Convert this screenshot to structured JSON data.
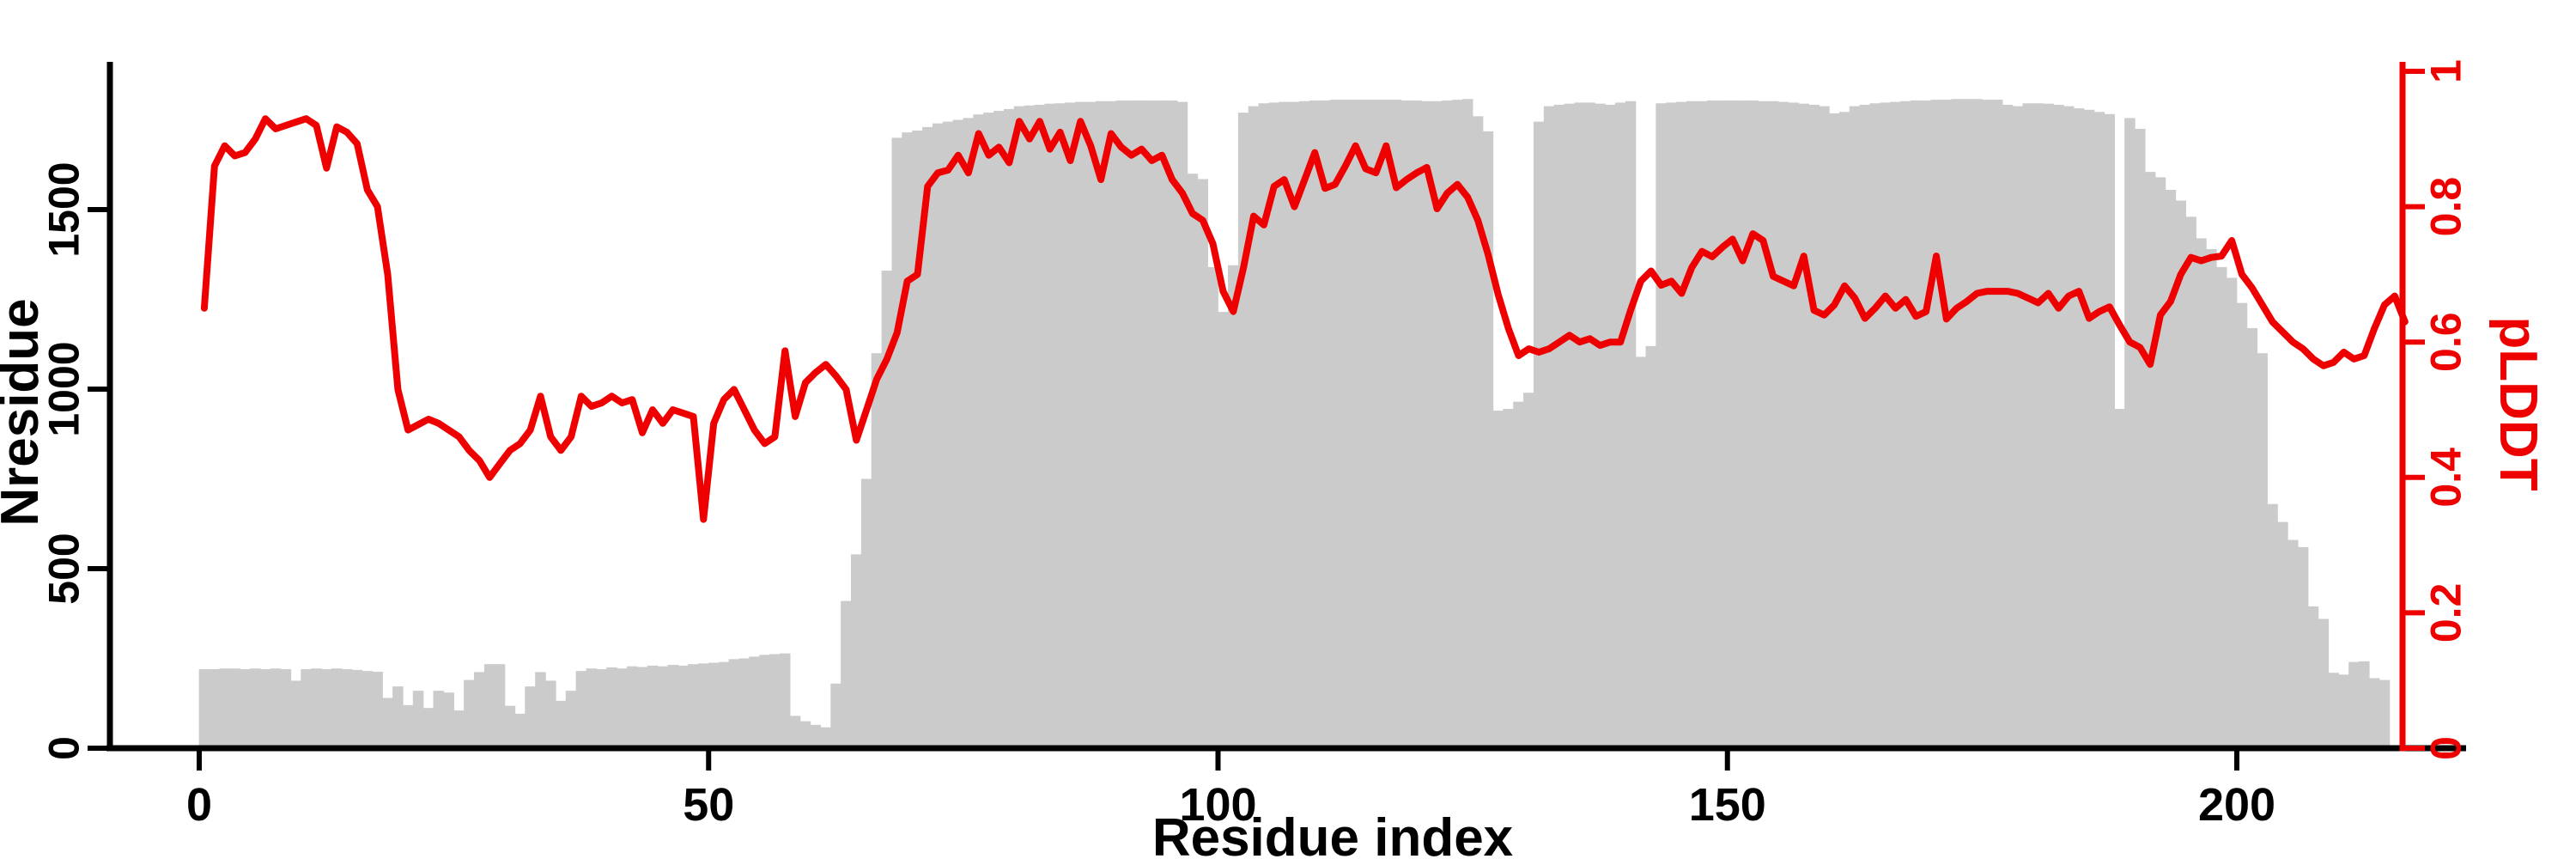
{
  "chart_data": {
    "type": "bar",
    "subtype": "dual-axis bar+line",
    "title": "",
    "xlabel": "Residue index",
    "ylabel_left": "Nresidue",
    "ylabel_right": "pLDDT",
    "x_ticks": [
      0,
      50,
      100,
      150,
      200
    ],
    "y_ticks_left": [
      0,
      500,
      1000,
      1500
    ],
    "y_ticks_right": [
      "0",
      "0.2",
      "0.4",
      "0.6",
      "0.8",
      "1"
    ],
    "y_ticks_right_values": [
      0,
      0.2,
      0.4,
      0.6,
      0.8,
      1
    ],
    "xlim": [
      0,
      217
    ],
    "ylim_left": [
      0,
      1880
    ],
    "ylim_right": [
      0,
      1
    ],
    "grid": false,
    "legend": false,
    "colors": {
      "bar": "#cbcbcb",
      "line": "#ee0000",
      "axis_left": "#000000",
      "axis_right": "#ee0000",
      "background": "#ffffff"
    },
    "x": "residue index 0..216",
    "bar_series": {
      "name": "Nresidue",
      "values": [
        220,
        220,
        222,
        222,
        220,
        222,
        220,
        222,
        220,
        188,
        220,
        222,
        220,
        222,
        220,
        218,
        215,
        213,
        140,
        172,
        120,
        160,
        112,
        160,
        155,
        105,
        190,
        212,
        234,
        234,
        118,
        96,
        172,
        212,
        188,
        132,
        160,
        215,
        222,
        220,
        225,
        222,
        228,
        226,
        230,
        228,
        232,
        230,
        234,
        236,
        238,
        240,
        248,
        250,
        255,
        260,
        262,
        264,
        90,
        75,
        65,
        58,
        180,
        410,
        540,
        750,
        1100,
        1330,
        1700,
        1715,
        1720,
        1730,
        1740,
        1745,
        1750,
        1755,
        1765,
        1770,
        1775,
        1780,
        1788,
        1790,
        1792,
        1795,
        1796,
        1798,
        1800,
        1800,
        1802,
        1802,
        1804,
        1804,
        1804,
        1804,
        1804,
        1804,
        1800,
        1600,
        1585,
        1340,
        1215,
        1345,
        1770,
        1788,
        1796,
        1798,
        1800,
        1800,
        1802,
        1804,
        1804,
        1806,
        1806,
        1806,
        1806,
        1806,
        1806,
        1806,
        1804,
        1804,
        1802,
        1802,
        1804,
        1806,
        1808,
        1760,
        1718,
        940,
        945,
        965,
        990,
        1745,
        1788,
        1792,
        1795,
        1798,
        1798,
        1795,
        1792,
        1798,
        1802,
        1090,
        1120,
        1796,
        1798,
        1800,
        1802,
        1802,
        1804,
        1804,
        1804,
        1804,
        1804,
        1802,
        1802,
        1800,
        1798,
        1795,
        1792,
        1788,
        1768,
        1772,
        1788,
        1792,
        1796,
        1798,
        1800,
        1802,
        1804,
        1804,
        1806,
        1806,
        1808,
        1808,
        1808,
        1806,
        1806,
        1792,
        1788,
        1796,
        1796,
        1795,
        1792,
        1788,
        1782,
        1778,
        1772,
        1766,
        945,
        1755,
        1725,
        1605,
        1590,
        1555,
        1525,
        1480,
        1420,
        1390,
        1340,
        1310,
        1240,
        1170,
        1100,
        680,
        630,
        580,
        560,
        395,
        360,
        210,
        205,
        240,
        242,
        195,
        190,
        0,
        0
      ]
    },
    "line_series": {
      "name": "pLDDT",
      "values": [
        0.65,
        0.86,
        0.89,
        0.875,
        0.88,
        0.9,
        0.93,
        0.915,
        0.92,
        0.925,
        0.93,
        0.92,
        0.857,
        0.918,
        0.91,
        0.893,
        0.825,
        0.8,
        0.7,
        0.53,
        0.47,
        0.478,
        0.486,
        0.48,
        0.47,
        0.46,
        0.44,
        0.425,
        0.4,
        0.42,
        0.44,
        0.45,
        0.47,
        0.52,
        0.46,
        0.44,
        0.46,
        0.52,
        0.505,
        0.51,
        0.52,
        0.51,
        0.515,
        0.466,
        0.5,
        0.48,
        0.5,
        0.495,
        0.49,
        0.338,
        0.48,
        0.515,
        0.53,
        0.5,
        0.47,
        0.45,
        0.46,
        0.587,
        0.49,
        0.54,
        0.555,
        0.567,
        0.55,
        0.53,
        0.455,
        0.5,
        0.545,
        0.575,
        0.614,
        0.69,
        0.7,
        0.83,
        0.85,
        0.854,
        0.876,
        0.85,
        0.908,
        0.876,
        0.888,
        0.865,
        0.926,
        0.9,
        0.926,
        0.885,
        0.91,
        0.868,
        0.926,
        0.89,
        0.84,
        0.908,
        0.888,
        0.876,
        0.885,
        0.868,
        0.876,
        0.84,
        0.82,
        0.79,
        0.78,
        0.745,
        0.675,
        0.645,
        0.71,
        0.786,
        0.773,
        0.83,
        0.84,
        0.8,
        0.84,
        0.88,
        0.827,
        0.833,
        0.86,
        0.89,
        0.856,
        0.85,
        0.89,
        0.828,
        0.84,
        0.85,
        0.858,
        0.797,
        0.82,
        0.833,
        0.814,
        0.78,
        0.73,
        0.67,
        0.62,
        0.58,
        0.59,
        0.585,
        0.59,
        0.6,
        0.61,
        0.6,
        0.605,
        0.595,
        0.6,
        0.6,
        0.647,
        0.69,
        0.705,
        0.684,
        0.69,
        0.672,
        0.71,
        0.734,
        0.726,
        0.74,
        0.752,
        0.72,
        0.76,
        0.75,
        0.697,
        0.69,
        0.683,
        0.727,
        0.647,
        0.64,
        0.655,
        0.683,
        0.665,
        0.635,
        0.65,
        0.668,
        0.65,
        0.663,
        0.638,
        0.645,
        0.727,
        0.634,
        0.65,
        0.66,
        0.672,
        0.675,
        0.675,
        0.675,
        0.672,
        0.665,
        0.658,
        0.672,
        0.65,
        0.668,
        0.675,
        0.635,
        0.645,
        0.652,
        0.625,
        0.6,
        0.592,
        0.567,
        0.64,
        0.66,
        0.7,
        0.725,
        0.72,
        0.725,
        0.727,
        0.75,
        0.7,
        0.68,
        0.655,
        0.63,
        0.615,
        0.6,
        0.59,
        0.575,
        0.565,
        0.57,
        0.585,
        0.575,
        0.58,
        0.62,
        0.655,
        0.668,
        0.63
      ]
    }
  }
}
